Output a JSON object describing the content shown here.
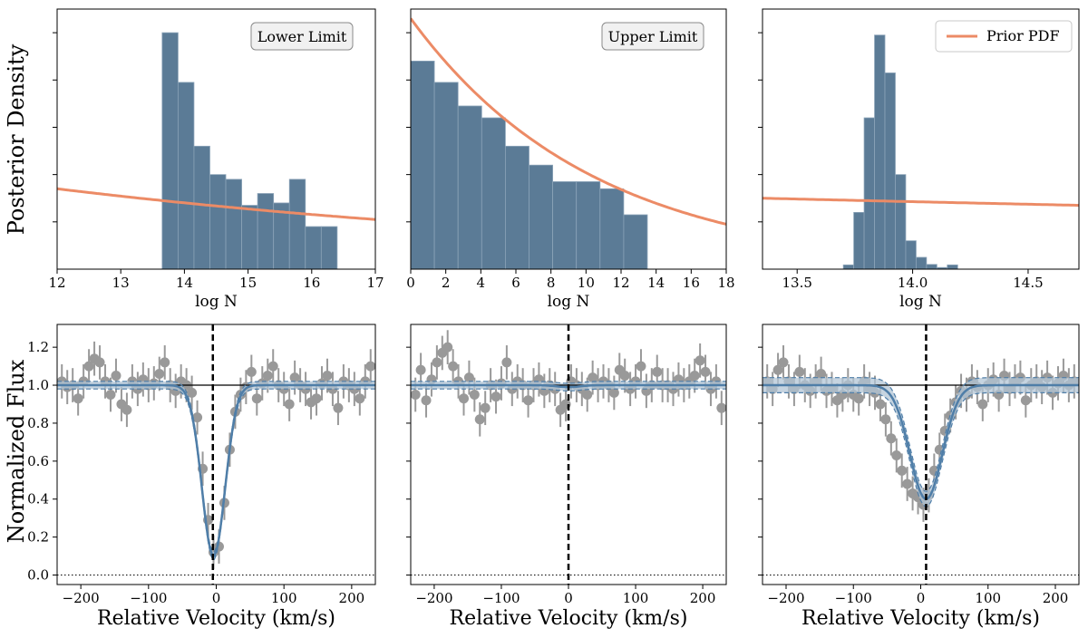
{
  "colors": {
    "hist": "#5b7b96",
    "hist_edge": "#8ba3b8",
    "prior": "#ec8b66",
    "data": "#999999",
    "model": "#4f7ea8",
    "band": "#b3c6d6",
    "axis": "#000000"
  },
  "figure": {
    "top_ylabel": "Posterior Density",
    "bottom_ylabel": "Normalized Flux",
    "legend_label": "Prior PDF"
  },
  "chart_data": [
    {
      "type": "bar",
      "panel": "top-left",
      "annotation": "Lower Limit",
      "xlabel": "log N",
      "ylabel": "Posterior Density",
      "xlim": [
        12,
        17
      ],
      "ylim": [
        0,
        1.1
      ],
      "xticks": [
        12,
        13,
        14,
        15,
        16,
        17
      ],
      "xtick_labels": [
        "12",
        "13",
        "14",
        "15",
        "16",
        "17"
      ],
      "yticks": [
        0.2,
        0.4,
        0.6,
        0.8,
        1.0
      ],
      "bin_edges": [
        13.65,
        13.9,
        14.15,
        14.4,
        14.65,
        14.9,
        15.15,
        15.4,
        15.65,
        15.9,
        16.15,
        16.4
      ],
      "values": [
        1.0,
        0.79,
        0.52,
        0.4,
        0.38,
        0.27,
        0.32,
        0.28,
        0.38,
        0.18,
        0.18
      ],
      "prior": {
        "x": [
          12,
          17
        ],
        "y": [
          0.34,
          0.21
        ],
        "curve": "exp"
      }
    },
    {
      "type": "bar",
      "panel": "top-middle",
      "annotation": "Upper Limit",
      "xlabel": "log N",
      "ylabel": "",
      "xlim": [
        0,
        18
      ],
      "ylim": [
        0,
        1.1
      ],
      "xticks": [
        0,
        2,
        4,
        6,
        8,
        10,
        12,
        14,
        16,
        18
      ],
      "xtick_labels": [
        "0",
        "2",
        "4",
        "6",
        "8",
        "10",
        "12",
        "14",
        "16",
        "18"
      ],
      "yticks": [
        0.2,
        0.4,
        0.6,
        0.8,
        1.0
      ],
      "bin_edges": [
        0,
        1.35,
        2.7,
        4.05,
        5.4,
        6.75,
        8.1,
        9.45,
        10.8,
        12.15,
        13.5
      ],
      "values": [
        0.88,
        0.79,
        0.69,
        0.64,
        0.52,
        0.44,
        0.37,
        0.37,
        0.34,
        0.23
      ],
      "prior": {
        "x": [
          0,
          18
        ],
        "y": [
          1.06,
          0.19
        ],
        "curve": "exp"
      }
    },
    {
      "type": "bar",
      "panel": "top-right",
      "annotation": "",
      "legend": [
        "Prior PDF"
      ],
      "legend_position": "top-right",
      "xlabel": "log N",
      "ylabel": "",
      "xlim": [
        13.35,
        14.72
      ],
      "ylim": [
        0,
        1.1
      ],
      "xticks": [
        13.5,
        14.0,
        14.5
      ],
      "xtick_labels": [
        "13.5",
        "14.0",
        "14.5"
      ],
      "yticks": [
        0.2,
        0.4,
        0.6,
        0.8,
        1.0
      ],
      "bin_edges": [
        13.7,
        13.745,
        13.79,
        13.835,
        13.88,
        13.925,
        13.97,
        14.015,
        14.06,
        14.105,
        14.15,
        14.195
      ],
      "values": [
        0.018,
        0.24,
        0.64,
        0.99,
        0.83,
        0.4,
        0.12,
        0.05,
        0.02,
        0.007,
        0.018
      ],
      "prior": {
        "x": [
          13.35,
          14.72
        ],
        "y": [
          0.3,
          0.27
        ],
        "curve": "exp"
      }
    },
    {
      "type": "line",
      "panel": "bottom-left",
      "title": "",
      "xlabel": "Relative Velocity (km/s)",
      "ylabel": "Normalized Flux",
      "xlim": [
        -235,
        235
      ],
      "ylim": [
        -0.05,
        1.32
      ],
      "xticks": [
        -200,
        -100,
        0,
        100,
        200
      ],
      "xtick_labels": [
        "−200",
        "−100",
        "0",
        "100",
        "200"
      ],
      "yticks": [
        0.0,
        0.2,
        0.4,
        0.6,
        0.8,
        1.0,
        1.2
      ],
      "ytick_labels": [
        "0.0",
        "0.2",
        "0.4",
        "0.6",
        "0.8",
        "1.0",
        "1.2"
      ],
      "vline": -5,
      "continuum": 1.0,
      "zero_line": 0.0,
      "model": {
        "depth": 0.9,
        "center": -4,
        "sigma": 17,
        "band_halfwidth": 0.02
      },
      "data_step": 8,
      "data_points": {
        "x": [
          -228,
          -220,
          -212,
          -204,
          -196,
          -188,
          -180,
          -172,
          -164,
          -156,
          -148,
          -140,
          -132,
          -124,
          -116,
          -108,
          -100,
          -92,
          -84,
          -76,
          -68,
          -60,
          -52,
          -44,
          -36,
          -28,
          -20,
          -12,
          -4,
          4,
          12,
          20,
          28,
          36,
          44,
          52,
          60,
          68,
          76,
          84,
          92,
          100,
          108,
          116,
          124,
          132,
          140,
          148,
          156,
          164,
          172,
          180,
          188,
          196,
          204,
          212,
          220,
          228
        ],
        "y": [
          1.02,
          0.99,
          1.0,
          0.93,
          1.02,
          1.1,
          1.14,
          1.12,
          1.02,
          0.95,
          1.05,
          0.9,
          0.87,
          1.02,
          0.98,
          1.03,
          1.0,
          1.01,
          1.06,
          1.12,
          1.0,
          0.97,
          1.02,
          1.0,
          0.96,
          0.83,
          0.56,
          0.29,
          0.12,
          0.15,
          0.38,
          0.66,
          0.86,
          0.95,
          0.99,
          1.07,
          0.93,
          1.01,
          1.05,
          1.1,
          1.0,
          0.98,
          0.9,
          1.04,
          1.0,
          0.98,
          0.91,
          0.93,
          1.01,
          1.05,
          0.98,
          0.88,
          1.02,
          1.0,
          0.98,
          0.93,
          1.02,
          1.1
        ],
        "err": 0.09
      }
    },
    {
      "type": "line",
      "panel": "bottom-middle",
      "title": "",
      "xlabel": "Relative Velocity (km/s)",
      "ylabel": "",
      "xlim": [
        -235,
        235
      ],
      "ylim": [
        -0.05,
        1.32
      ],
      "xticks": [
        -200,
        -100,
        0,
        100,
        200
      ],
      "xtick_labels": [
        "−200",
        "−100",
        "0",
        "100",
        "200"
      ],
      "yticks": [
        0.0,
        0.2,
        0.4,
        0.6,
        0.8,
        1.0,
        1.2
      ],
      "ytick_labels": [],
      "vline": 0,
      "continuum": 1.0,
      "zero_line": 0.0,
      "model": {
        "depth": 0.01,
        "center": 0,
        "sigma": 17,
        "band_halfwidth": 0.02
      },
      "data_step": 8,
      "data_points": {
        "x": [
          -228,
          -220,
          -212,
          -204,
          -196,
          -188,
          -180,
          -172,
          -164,
          -156,
          -148,
          -140,
          -132,
          -124,
          -116,
          -108,
          -100,
          -92,
          -84,
          -76,
          -68,
          -60,
          -52,
          -44,
          -36,
          -28,
          -20,
          -12,
          -4,
          4,
          12,
          20,
          28,
          36,
          44,
          52,
          60,
          68,
          76,
          84,
          92,
          100,
          108,
          116,
          124,
          132,
          140,
          148,
          156,
          164,
          172,
          180,
          188,
          196,
          204,
          212,
          220,
          228
        ],
        "y": [
          0.95,
          1.08,
          0.92,
          1.03,
          1.12,
          1.17,
          1.2,
          1.1,
          1.02,
          0.93,
          1.04,
          0.95,
          0.82,
          0.88,
          1.0,
          0.94,
          1.01,
          1.12,
          0.98,
          1.02,
          1.0,
          0.92,
          1.0,
          1.03,
          0.97,
          1.0,
          0.98,
          0.87,
          0.9,
          1.02,
          1.0,
          0.98,
          0.95,
          1.04,
          1.0,
          1.02,
          1.0,
          0.96,
          1.08,
          1.05,
          0.98,
          1.02,
          1.1,
          0.97,
          1.0,
          1.07,
          1.0,
          1.0,
          0.98,
          1.03,
          1.0,
          1.02,
          1.05,
          1.13,
          1.07,
          0.98,
          1.02,
          0.88
        ],
        "err": 0.09
      }
    },
    {
      "type": "line",
      "panel": "bottom-right",
      "title": "",
      "xlabel": "Relative Velocity (km/s)",
      "ylabel": "",
      "xlim": [
        -235,
        235
      ],
      "ylim": [
        -0.05,
        1.32
      ],
      "xticks": [
        -200,
        -100,
        0,
        100,
        200
      ],
      "xtick_labels": [
        "−200",
        "−100",
        "0",
        "100",
        "200"
      ],
      "yticks": [
        0.0,
        0.2,
        0.4,
        0.6,
        0.8,
        1.0,
        1.2
      ],
      "ytick_labels": [],
      "vline": 8,
      "continuum": 1.0,
      "zero_line": 0.0,
      "model": {
        "depth": 0.6,
        "center": 8,
        "sigma": 24,
        "band_halfwidth": 0.04
      },
      "data_step": 8,
      "data_points": {
        "x": [
          -228,
          -220,
          -212,
          -204,
          -196,
          -188,
          -180,
          -172,
          -164,
          -156,
          -148,
          -140,
          -132,
          -124,
          -116,
          -108,
          -100,
          -92,
          -84,
          -76,
          -68,
          -60,
          -52,
          -44,
          -36,
          -28,
          -20,
          -12,
          -4,
          4,
          12,
          20,
          28,
          36,
          44,
          52,
          60,
          68,
          76,
          84,
          92,
          100,
          108,
          116,
          124,
          132,
          140,
          148,
          156,
          164,
          172,
          180,
          188,
          196,
          204,
          212,
          220,
          228
        ],
        "y": [
          1.02,
          0.98,
          1.08,
          1.12,
          1.02,
          0.98,
          1.07,
          1.0,
          0.97,
          1.02,
          1.06,
          0.97,
          0.98,
          0.92,
          0.95,
          1.0,
          0.95,
          0.93,
          1.02,
          0.98,
          0.96,
          0.9,
          0.82,
          0.72,
          0.63,
          0.55,
          0.48,
          0.43,
          0.41,
          0.37,
          0.42,
          0.55,
          0.66,
          0.76,
          0.84,
          0.91,
          0.97,
          0.95,
          1.02,
          0.99,
          0.9,
          1.0,
          1.03,
          0.95,
          1.05,
          0.98,
          1.02,
          1.04,
          0.92,
          1.0,
          1.02,
          0.99,
          1.04,
          0.96,
          1.01,
          1.05,
          1.0,
          1.02
        ],
        "err": 0.09
      }
    }
  ]
}
